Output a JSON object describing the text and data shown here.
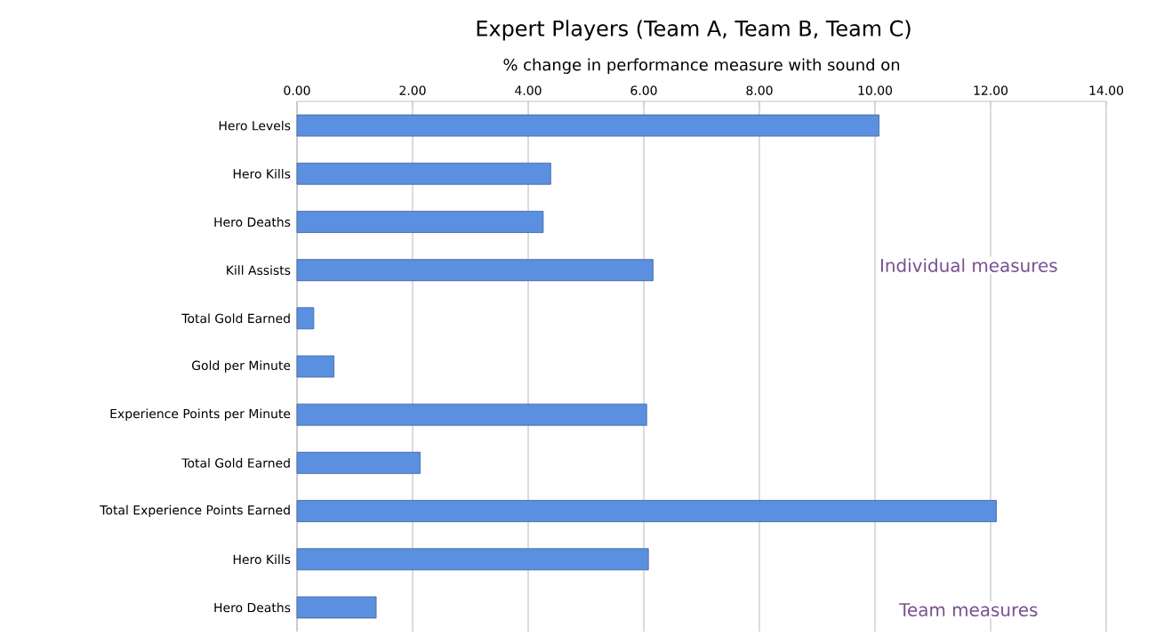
{
  "chart_data": {
    "type": "bar",
    "orientation": "horizontal",
    "title": "Expert Players (Team A, Team B, Team C)",
    "xlabel": "% change in performance measure with sound on",
    "categories": [
      "Hero Levels",
      "Hero Kills",
      "Hero Deaths",
      "Kill Assists",
      "Total Gold Earned",
      "Gold per Minute",
      "Experience Points per Minute",
      "Total Gold Earned",
      "Total Experience Points Earned",
      "Hero Kills",
      "Hero Deaths"
    ],
    "values": [
      10.07,
      4.39,
      4.26,
      6.16,
      0.29,
      0.64,
      6.05,
      2.13,
      12.1,
      6.08,
      1.37
    ],
    "color": "#5b8fdf",
    "xlim": [
      0,
      14
    ],
    "xticks": [
      {
        "value": 0,
        "label": "0.00"
      },
      {
        "value": 2,
        "label": "2.00"
      },
      {
        "value": 4,
        "label": "4.00"
      },
      {
        "value": 6,
        "label": "6.00"
      },
      {
        "value": 8,
        "label": "8.00"
      },
      {
        "value": 10,
        "label": "10.00"
      },
      {
        "value": 12,
        "label": "12.00"
      },
      {
        "value": 14,
        "label": "14.00"
      }
    ],
    "grid": "x",
    "annotations": [
      "Individual measures",
      "Team measures"
    ]
  }
}
